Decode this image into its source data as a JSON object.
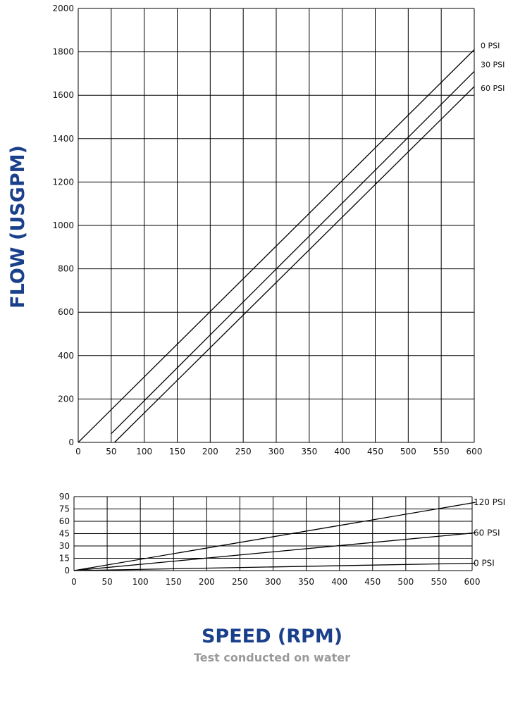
{
  "chart_data": [
    {
      "type": "line",
      "ylabel": "FLOW (USGPM)",
      "xlim": [
        0,
        600
      ],
      "ylim": [
        0,
        2000
      ],
      "x_ticks": [
        0,
        50,
        100,
        150,
        200,
        250,
        300,
        350,
        400,
        450,
        500,
        550,
        600
      ],
      "y_ticks": [
        0,
        200,
        400,
        600,
        800,
        1000,
        1200,
        1400,
        1600,
        1800,
        2000
      ],
      "grid": true,
      "series": [
        {
          "name": "0 PSI",
          "x": [
            0,
            600
          ],
          "y": [
            0,
            1810
          ]
        },
        {
          "name": "30 PSI",
          "x": [
            50,
            600
          ],
          "y": [
            40,
            1710
          ]
        },
        {
          "name": "60 PSI",
          "x": [
            55,
            600
          ],
          "y": [
            0,
            1640
          ]
        }
      ]
    },
    {
      "type": "line",
      "xlabel": "SPEED (RPM)",
      "xlim": [
        0,
        600
      ],
      "ylim": [
        0,
        90
      ],
      "x_ticks": [
        0,
        50,
        100,
        150,
        200,
        250,
        300,
        350,
        400,
        450,
        500,
        550,
        600
      ],
      "y_ticks": [
        0,
        15,
        30,
        45,
        60,
        75,
        90
      ],
      "grid": true,
      "series": [
        {
          "name": "120 PSI",
          "x": [
            0,
            605
          ],
          "y": [
            0,
            83
          ]
        },
        {
          "name": "60 PSI",
          "x": [
            0,
            605
          ],
          "y": [
            0,
            46
          ]
        },
        {
          "name": "0 PSI",
          "x": [
            0,
            605
          ],
          "y": [
            0,
            9
          ]
        }
      ]
    }
  ],
  "labels": {
    "flow_axis": "FLOW (USGPM)",
    "speed_axis": "SPEED (RPM)",
    "note": "Test conducted on water"
  }
}
